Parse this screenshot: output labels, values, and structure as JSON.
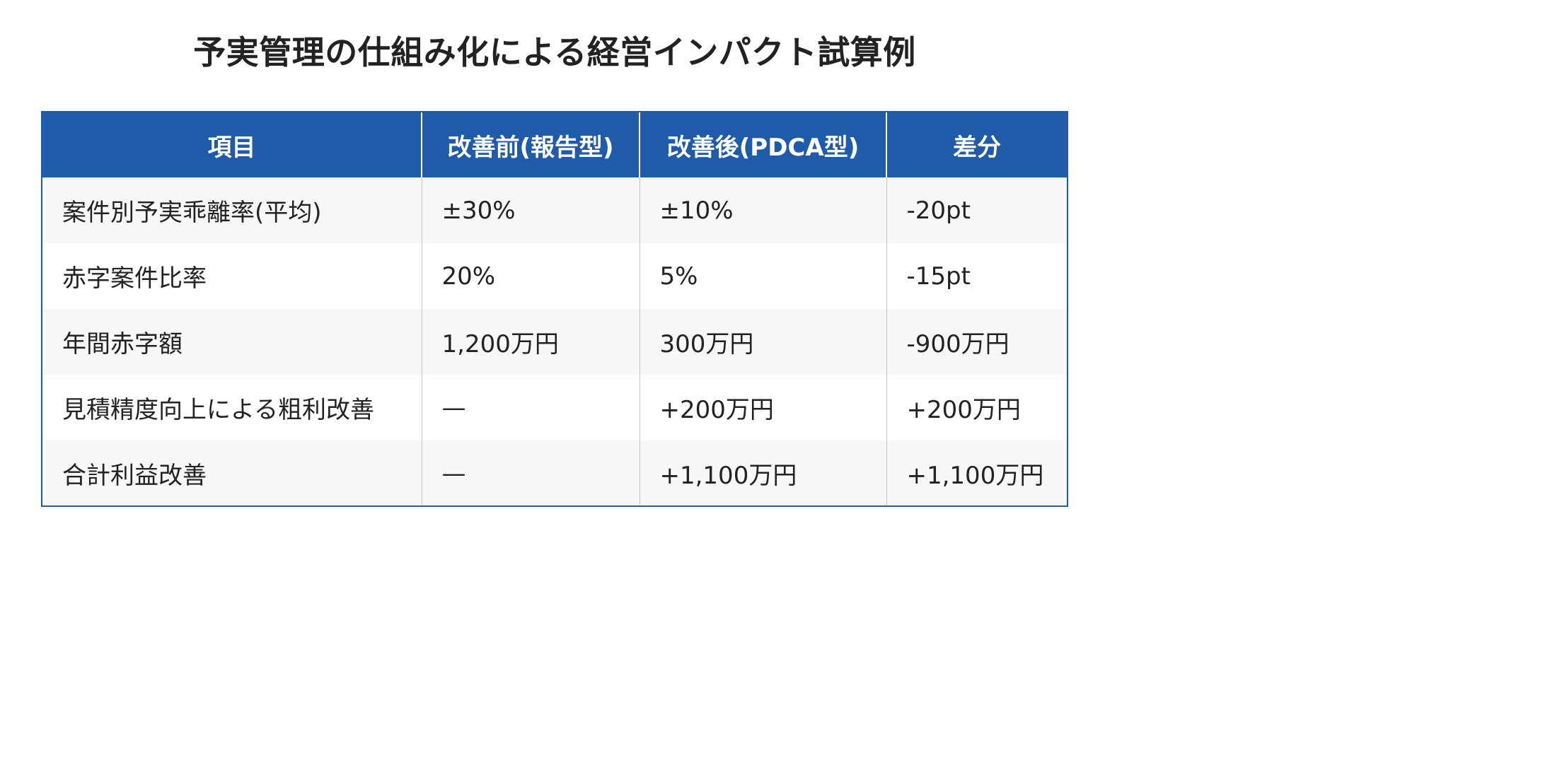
{
  "title": "予実管理の仕組み化による経営インパクト試算例",
  "table": {
    "headers": [
      "項目",
      "改善前(報告型)",
      "改善後(PDCA型)",
      "差分"
    ],
    "rows": [
      [
        "案件別予実乖離率(平均)",
        "±30%",
        "±10%",
        "-20pt"
      ],
      [
        "赤字案件比率",
        "20%",
        "5%",
        "-15pt"
      ],
      [
        "年間赤字額",
        "1,200万円",
        "300万円",
        "-900万円"
      ],
      [
        "見積精度向上による粗利改善",
        "—",
        "+200万円",
        "+200万円"
      ],
      [
        "合計利益改善",
        "—",
        "+1,100万円",
        "+1,100万円"
      ]
    ]
  },
  "colors": {
    "header_bg": "#1f5ba8",
    "header_text": "#ffffff",
    "row_alt_bg": "#f6f7f9",
    "text": "#222222"
  }
}
